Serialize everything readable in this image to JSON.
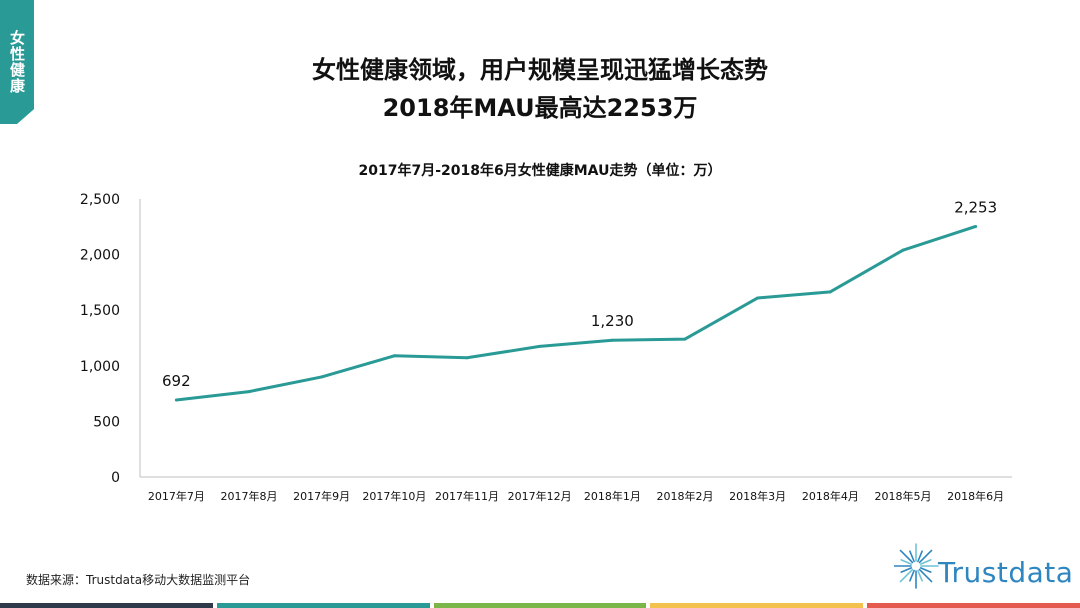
{
  "side_tab": {
    "label": "女性健康"
  },
  "titles": {
    "line1": "女性健康领域，用户规模呈现迅猛增长态势",
    "line2": "2018年MAU最高达2253万"
  },
  "chart_data": {
    "type": "line",
    "title": "2017年7月-2018年6月女性健康MAU走势（单位：万）",
    "categories": [
      "2017年7月",
      "2017年8月",
      "2017年9月",
      "2017年10月",
      "2017年11月",
      "2017年12月",
      "2018年1月",
      "2018年2月",
      "2018年3月",
      "2018年4月",
      "2018年5月",
      "2018年6月"
    ],
    "series": [
      {
        "values": [
          692,
          768,
          900,
          1090,
          1072,
          1175,
          1230,
          1240,
          1610,
          1665,
          2040,
          2253
        ]
      }
    ],
    "data_labels": [
      {
        "index": 0,
        "text": "692"
      },
      {
        "index": 6,
        "text": "1,230"
      },
      {
        "index": 11,
        "text": "2,253"
      }
    ],
    "y_ticks": [
      "0",
      "500",
      "1,000",
      "1,500",
      "2,000",
      "2,500"
    ],
    "ylim": [
      0,
      2500
    ],
    "grid": false,
    "line_color": "#2a9a96"
  },
  "footer": {
    "source": "数据来源：Trustdata移动大数据监测平台",
    "logo_text": "Trustdata",
    "logo_color": "#2e86c1",
    "bar_colors": [
      "#2e3a4a",
      "#2a9a96",
      "#7ab648",
      "#f2c14e",
      "#e55a4e"
    ]
  }
}
